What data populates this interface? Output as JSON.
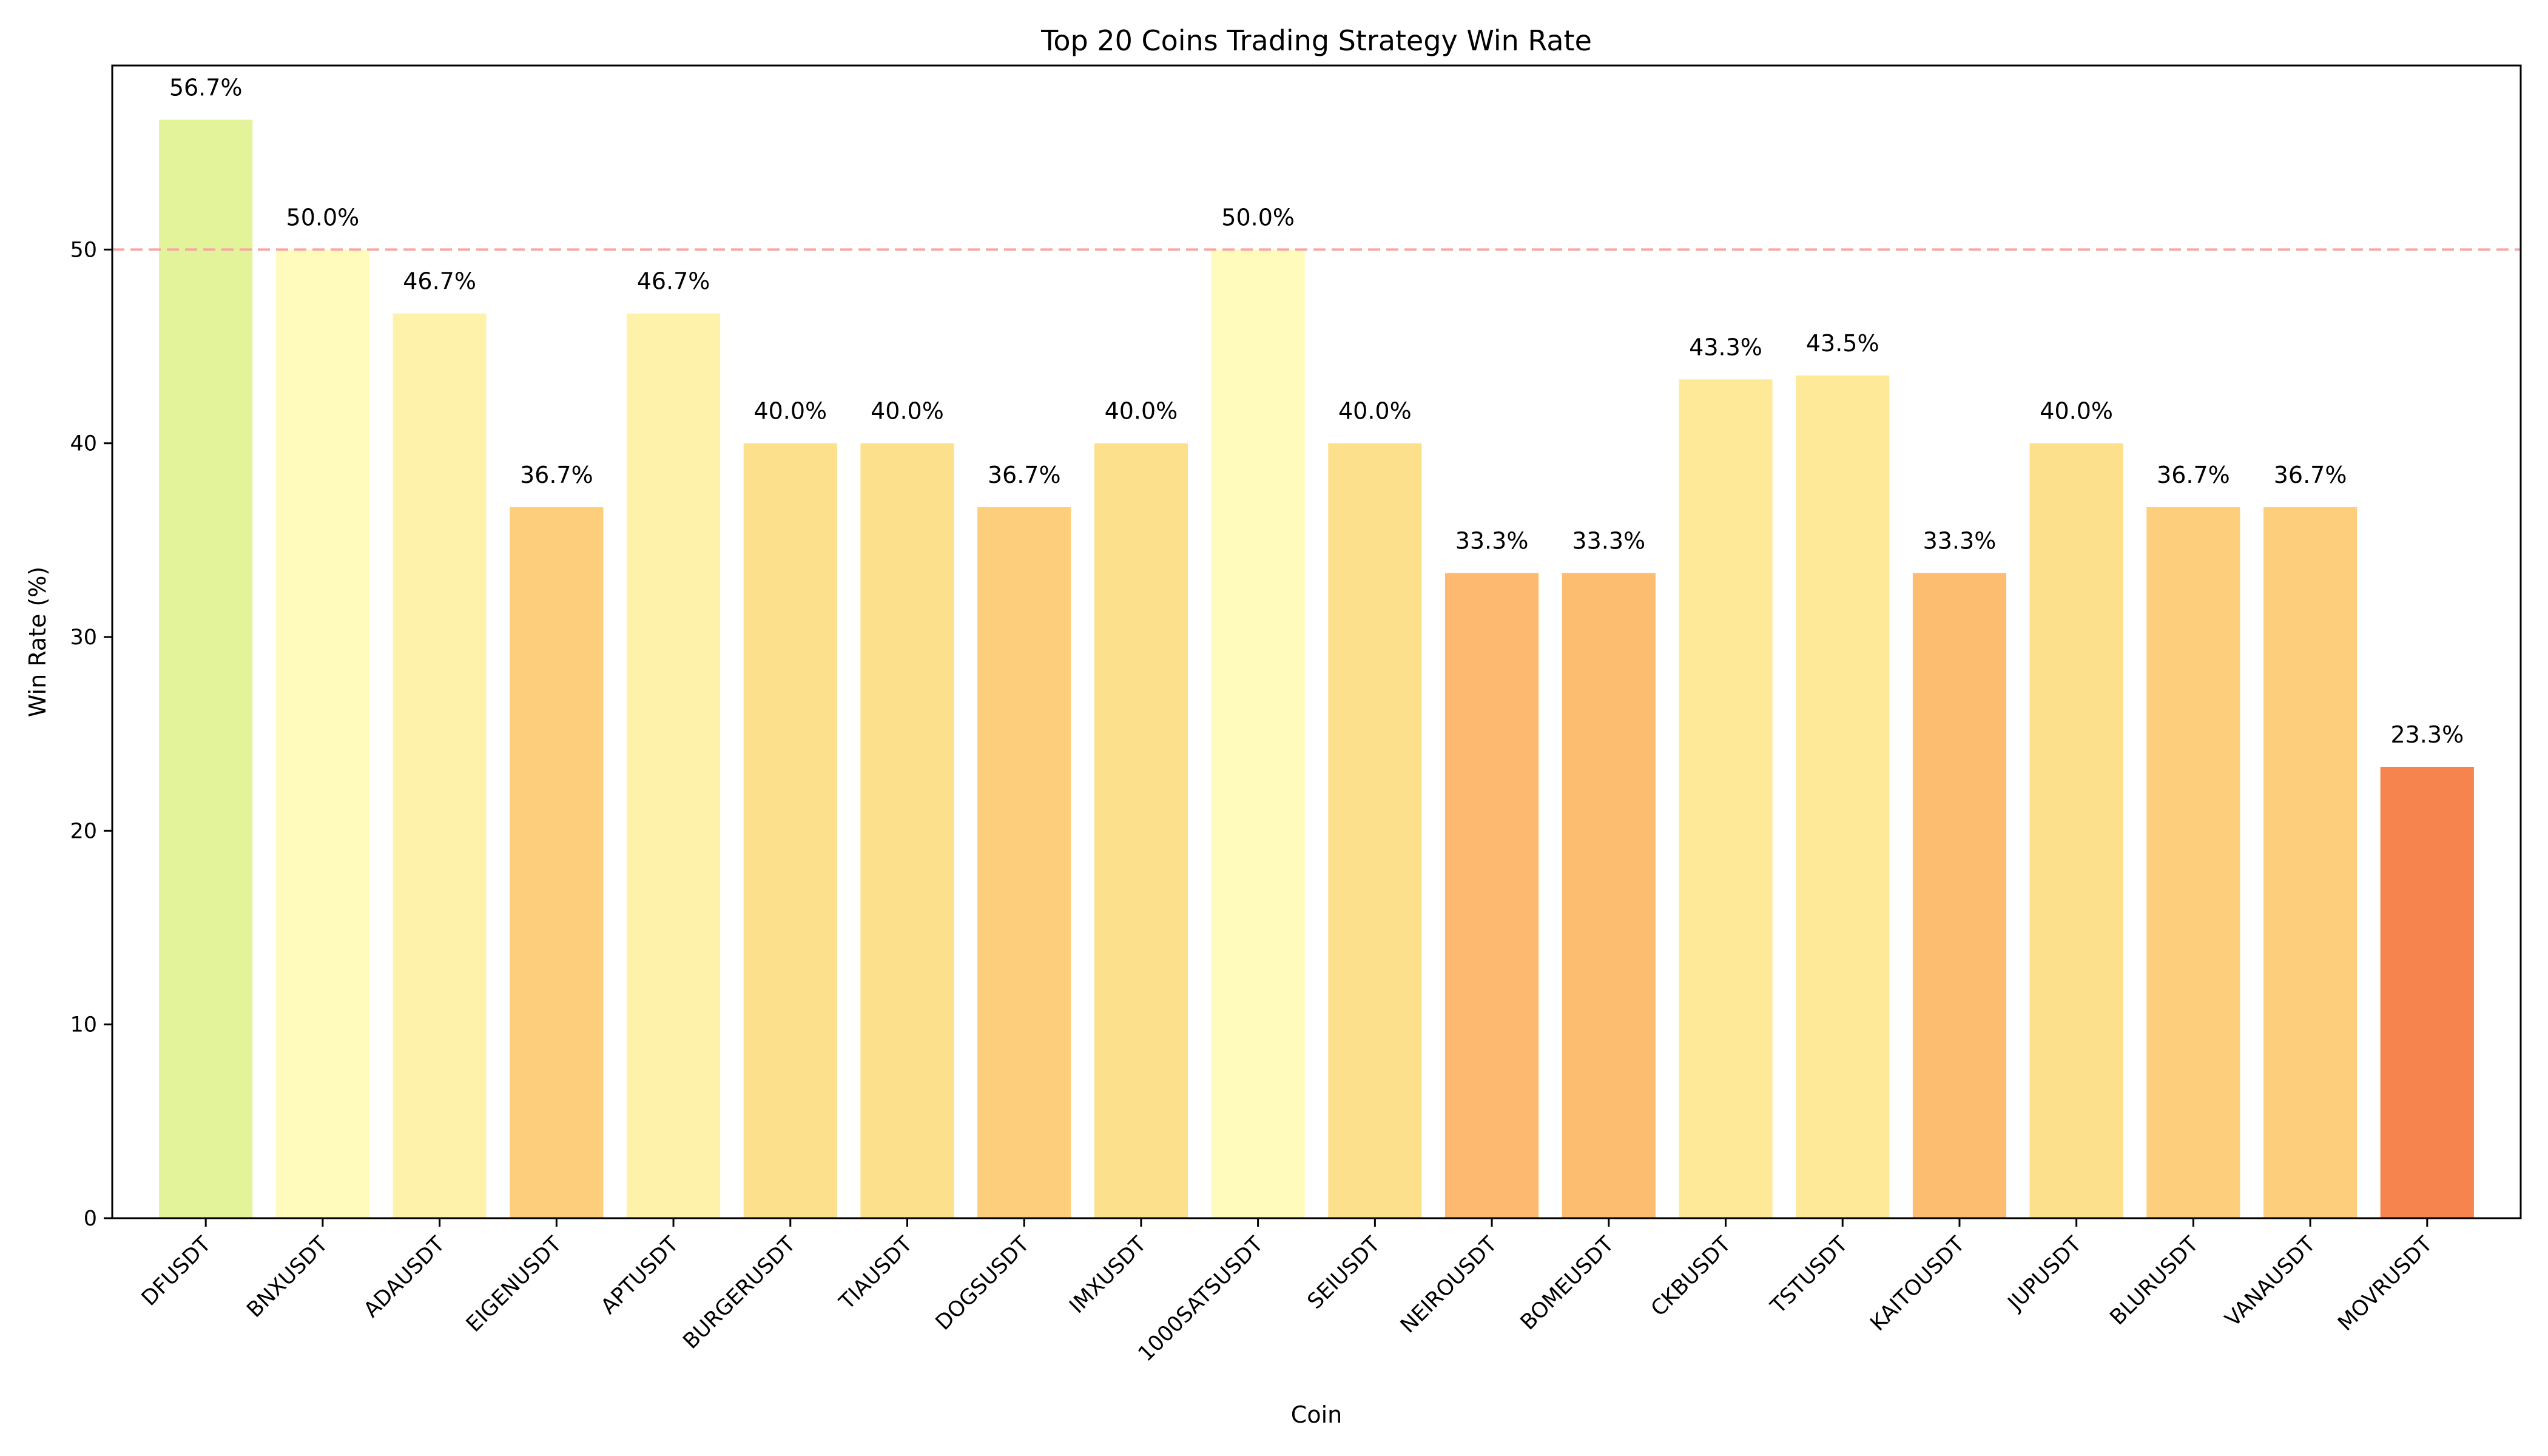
{
  "chart_data": {
    "type": "bar",
    "title": "Top 20 Coins Trading Strategy Win Rate",
    "xlabel": "Coin",
    "ylabel": "Win Rate (%)",
    "ylim": [
      0,
      59.5
    ],
    "yticks": [
      0,
      10,
      20,
      30,
      40,
      50
    ],
    "grid": false,
    "reference_line": {
      "value": 50,
      "style": "dashed",
      "color": "#f7a6a6"
    },
    "categories": [
      "DFUSDT",
      "BNXUSDT",
      "ADAUSDT",
      "EIGENUSDT",
      "APTUSDT",
      "BURGERUSDT",
      "TIAUSDT",
      "DOGSUSDT",
      "IMXUSDT",
      "1000SATSUSDT",
      "SEIUSDT",
      "NEIROUSDT",
      "BOMEUSDT",
      "CKBUSDT",
      "TSTUSDT",
      "KAITOUSDT",
      "JUPUSDT",
      "BLURUSDT",
      "VANAUSDT",
      "MOVRUSDT"
    ],
    "values": [
      56.7,
      50.0,
      46.7,
      36.7,
      46.7,
      40.0,
      40.0,
      36.7,
      40.0,
      50.0,
      40.0,
      33.3,
      33.3,
      43.3,
      43.5,
      33.3,
      40.0,
      36.7,
      36.7,
      23.3
    ],
    "data_labels": [
      "56.7%",
      "50.0%",
      "46.7%",
      "36.7%",
      "46.7%",
      "40.0%",
      "40.0%",
      "36.7%",
      "40.0%",
      "50.0%",
      "40.0%",
      "33.3%",
      "33.3%",
      "43.3%",
      "43.5%",
      "33.3%",
      "40.0%",
      "36.7%",
      "36.7%",
      "23.3%"
    ],
    "colors": [
      "#e3f399",
      "#fefbbd",
      "#fef2ab",
      "#fdce7c",
      "#fef2ab",
      "#fde08c",
      "#fde08c",
      "#fdce7c",
      "#fde08c",
      "#fefbbd",
      "#fde08c",
      "#fdb96f",
      "#fdbd71",
      "#fee999",
      "#fee999",
      "#fdbd71",
      "#fde08c",
      "#fdce7c",
      "#fdce7c",
      "#f5844f"
    ]
  }
}
